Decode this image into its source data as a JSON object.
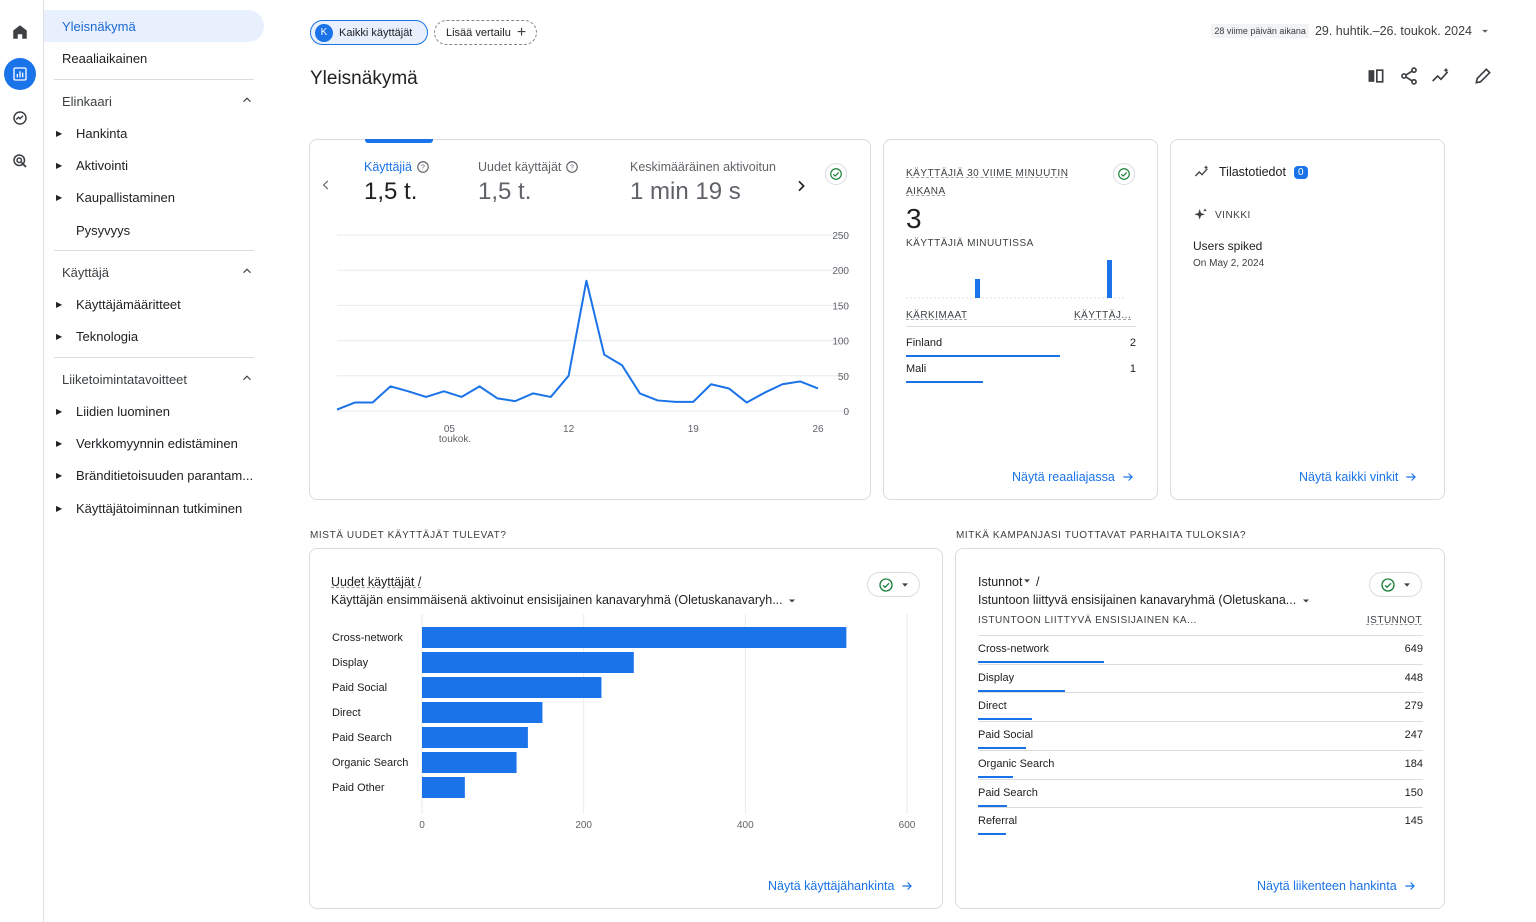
{
  "rail": {
    "icons": [
      "home-icon",
      "reports-icon",
      "explore-icon",
      "advertising-icon"
    ]
  },
  "sidebar": {
    "overview": "Yleisnäkymä",
    "realtime": "Reaaliaikainen",
    "lifecycle": {
      "title": "Elinkaari",
      "items": [
        "Hankinta",
        "Aktivointi",
        "Kaupallistaminen",
        "Pysyvyys"
      ]
    },
    "user": {
      "title": "Käyttäjä",
      "items": [
        "Käyttäjämääritteet",
        "Teknologia"
      ]
    },
    "business": {
      "title": "Liiketoimintatavoitteet",
      "items": [
        "Liidien luominen",
        "Verkkomyynnin edistäminen",
        "Bränditietoisuuden parantam...",
        "Käyttäjätoiminnan tutkiminen"
      ]
    }
  },
  "header": {
    "chip_all_users": "Kaikki käyttäjät",
    "chip_avatar": "K",
    "add_comparison": "Lisää vertailu",
    "date_label": "28 viime päivän aikana",
    "date_range": "29. huhtik.–26. toukok. 2024",
    "title": "Yleisnäkymä"
  },
  "metrics_card": {
    "tabs": [
      {
        "label": "Käyttäjiä",
        "value": "1,5 t."
      },
      {
        "label": "Uudet käyttäjät",
        "value": "1,5 t."
      },
      {
        "label": "Keskimääräinen aktivoitun",
        "value": "1 min 19 s"
      }
    ]
  },
  "realtime_card": {
    "title_line1": "KÄYTTÄJIÄ 30 VIIME MINUUTIN",
    "title_line2": "AIKANA",
    "count": "3",
    "per_minute": "KÄYTTÄJIÄ MINUUTISSA",
    "col_country": "KÄRKIMAAT",
    "col_users": "KÄYTTÄJ...",
    "rows": [
      {
        "name": "Finland",
        "value": "2",
        "fraction": 1.0
      },
      {
        "name": "Mali",
        "value": "1",
        "fraction": 0.5
      }
    ],
    "link": "Näytä reaaliajassa"
  },
  "insights_card": {
    "title": "Tilastotiedot",
    "badge": "0",
    "tip_label": "VINKKI",
    "insight_title": "Users spiked",
    "insight_date": "On May 2, 2024",
    "link": "Näytä kaikki vinkit"
  },
  "section_new_users": "MISTÄ UUDET KÄYTTÄJÄT TULEVAT?",
  "section_campaigns": "MITKÄ KAMPANJASI TUOTTAVAT PARHAITA TULOKSIA?",
  "new_users_card": {
    "title_line1": "Uudet käyttäjät /",
    "title_line2": "Käyttäjän ensimmäisenä aktivoinut ensisijainen kanavaryhmä (Oletuskanavaryh...",
    "link": "Näytä käyttäjähankinta"
  },
  "sessions_card": {
    "title_line1": "Istunnot",
    "title_slash": "/",
    "title_line2": "Istuntoon liittyvä ensisijainen kanavaryhmä (Oletuskana...",
    "col_dim": "ISTUNTOON LIITTYVÄ ENSISIJAINEN KA...",
    "col_metric": "ISTUNNOT",
    "rows": [
      {
        "name": "Cross-network",
        "value": "649",
        "fraction": 1.0
      },
      {
        "name": "Display",
        "value": "448",
        "fraction": 0.69
      },
      {
        "name": "Direct",
        "value": "279",
        "fraction": 0.43
      },
      {
        "name": "Paid Social",
        "value": "247",
        "fraction": 0.38
      },
      {
        "name": "Organic Search",
        "value": "184",
        "fraction": 0.28
      },
      {
        "name": "Paid Search",
        "value": "150",
        "fraction": 0.23
      },
      {
        "name": "Referral",
        "value": "145",
        "fraction": 0.22
      }
    ],
    "link": "Näytä liikenteen hankinta"
  },
  "chart_data": [
    {
      "type": "line",
      "x": [
        "29.4",
        "30.4",
        "1.5",
        "2.5",
        "3.5",
        "4.5",
        "5.5",
        "6.5",
        "7.5",
        "8.5",
        "9.5",
        "10.5",
        "11.5",
        "12.5",
        "13.5",
        "14.5",
        "15.5",
        "16.5",
        "17.5",
        "18.5",
        "19.5",
        "20.5",
        "21.5",
        "22.5",
        "23.5",
        "24.5",
        "25.5",
        "26.5"
      ],
      "values": [
        2,
        12,
        12,
        35,
        28,
        20,
        28,
        20,
        35,
        18,
        14,
        25,
        20,
        50,
        185,
        80,
        65,
        25,
        15,
        13,
        13,
        38,
        32,
        12,
        26,
        38,
        42,
        32
      ],
      "x_ticks": [
        {
          "label": "05",
          "sub": "toukok.",
          "index": 6
        },
        {
          "label": "12",
          "index": 13
        },
        {
          "label": "19",
          "index": 20
        },
        {
          "label": "26",
          "index": 27
        }
      ],
      "y_ticks": [
        "0",
        "50",
        "100",
        "150",
        "200",
        "250"
      ],
      "ylim": [
        0,
        250
      ]
    },
    {
      "type": "bar",
      "series_name": "realtime_users_per_minute",
      "values": [
        0,
        0,
        0,
        0,
        0,
        0,
        0,
        0,
        0,
        1,
        0,
        0,
        0,
        0,
        0,
        0,
        0,
        0,
        0,
        0,
        0,
        0,
        0,
        0,
        0,
        0,
        0,
        2,
        0,
        0
      ],
      "ylim": [
        0,
        2
      ]
    },
    {
      "type": "bar",
      "orientation": "horizontal",
      "categories": [
        "Cross-network",
        "Display",
        "Paid Social",
        "Direct",
        "Paid Search",
        "Organic Search",
        "Paid Other"
      ],
      "values": [
        525,
        262,
        222,
        149,
        131,
        117,
        53
      ],
      "x_ticks": [
        "0",
        "200",
        "400",
        "600"
      ],
      "xlim": [
        0,
        600
      ]
    }
  ]
}
